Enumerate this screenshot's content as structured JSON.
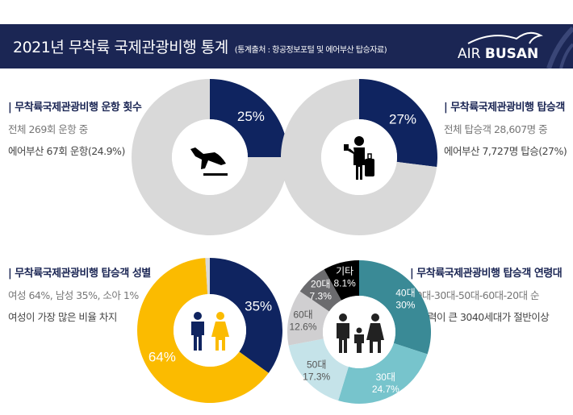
{
  "header": {
    "title": "2021년 무착륙 국제관광비행 통계",
    "source": "(통계출처 : 항공정보포털 및 에어부산 탑승자료)",
    "logo": "AIR BUSAN",
    "logo_a": "AIR",
    "logo_b": "BUSAN"
  },
  "sections": [
    {
      "heading": "| 무착륙국제관광비행 운항 횟수",
      "line1": "전체 269회 운항 중",
      "line2": "에어부산 67회 운항(24.9%)"
    },
    {
      "heading": "| 무착륙국제관광비행 탑승객",
      "line1": "전체 탑승객 28,607명 중",
      "line2": "에어부산 7,727명 탑승(27%)"
    },
    {
      "heading": "| 무착륙국제관광비행 탑승객 성별",
      "line1": "여성 64%, 남성 35%, 소아 1%",
      "line2": "여성이 가장 많은 비율 차지"
    },
    {
      "heading": "| 무착륙국제관광비행 탑승객 연령대",
      "line1": "40대-30대-50대-60대-20대 순",
      "line2": "구매력이 큰 3040세대가 절반이상"
    }
  ],
  "chart_data": [
    {
      "type": "pie",
      "icon": "airplane-takeoff-icon",
      "slices": [
        {
          "label": "25%",
          "value": 25,
          "color": "#0f2460"
        },
        {
          "label": "",
          "value": 75,
          "color": "#d9d9d9"
        }
      ]
    },
    {
      "type": "pie",
      "icon": "traveler-icon",
      "slices": [
        {
          "label": "27%",
          "value": 27,
          "color": "#0f2460"
        },
        {
          "label": "",
          "value": 73,
          "color": "#d9d9d9"
        }
      ]
    },
    {
      "type": "pie",
      "icon": "male-female-icon",
      "slices": [
        {
          "label": "35%",
          "value": 35,
          "color": "#0f2460"
        },
        {
          "label": "64%",
          "value": 64,
          "color": "#fbbb00"
        },
        {
          "label": "",
          "value": 1,
          "color": "#d9d9d9"
        }
      ]
    },
    {
      "type": "pie",
      "icon": "family-icon",
      "slices": [
        {
          "label": "40대",
          "pct": "30%",
          "value": 30,
          "color": "#3a8a96"
        },
        {
          "label": "30대",
          "pct": "24.7%",
          "value": 24.7,
          "color": "#77c4cc"
        },
        {
          "label": "50대",
          "pct": "17.3%",
          "value": 17.3,
          "color": "#c5e3e9"
        },
        {
          "label": "60대",
          "pct": "12.6%",
          "value": 12.6,
          "color": "#d0cfd1"
        },
        {
          "label": "20대",
          "pct": "7.3%",
          "value": 7.3,
          "color": "#6b6b6e"
        },
        {
          "label": "기타",
          "pct": "8.1%",
          "value": 8.1,
          "color": "#000000"
        }
      ]
    }
  ]
}
